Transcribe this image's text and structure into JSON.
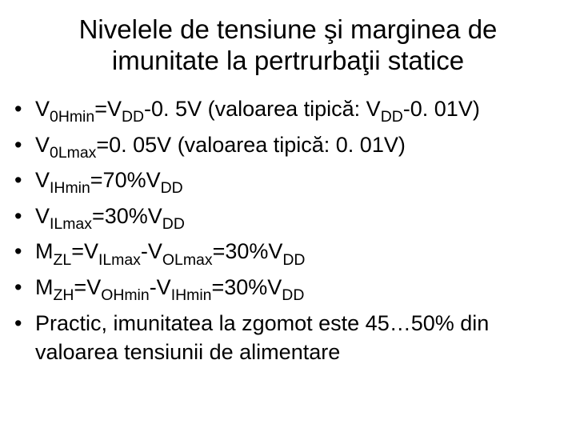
{
  "title_line1": "Nivelele de tensiune şi marginea de",
  "title_line2": "imunitate la pertrurbaţii statice",
  "bullets": [
    {
      "pre": "V",
      "sub1": "0Hmin",
      "mid1": "=V",
      "sub2": "DD",
      "mid2": "-0. 5V (valoarea tipică: V",
      "sub3": "DD",
      "post": "-0. 01V)"
    },
    {
      "pre": "V",
      "sub1": "0Lmax",
      "mid1": "=0. 05V (valoarea tipică: 0. 01V)",
      "sub2": "",
      "mid2": "",
      "sub3": "",
      "post": ""
    },
    {
      "pre": "V",
      "sub1": "IHmin",
      "mid1": "=70%V",
      "sub2": "DD",
      "mid2": "",
      "sub3": "",
      "post": ""
    },
    {
      "pre": "V",
      "sub1": "ILmax",
      "mid1": "=30%V",
      "sub2": "DD",
      "mid2": "",
      "sub3": "",
      "post": ""
    },
    {
      "pre": "M",
      "sub1": "ZL",
      "mid1": "=V",
      "sub2": "ILmax",
      "mid2": "-V",
      "sub3": "OLmax",
      "post": "=30%V",
      "sub4": "DD"
    },
    {
      "pre": "M",
      "sub1": "ZH",
      "mid1": "=V",
      "sub2": "OHmin",
      "mid2": "-V",
      "sub3": "IHmin",
      "post": "=30%V",
      "sub4": "DD"
    },
    {
      "plain": "Practic, imunitatea la zgomot este 45…50% din valoarea tensiunii de alimentare"
    }
  ]
}
